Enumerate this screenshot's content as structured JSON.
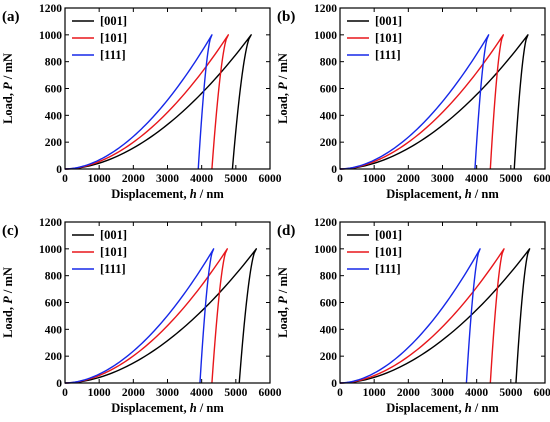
{
  "figure": {
    "panel_labels": [
      "(a)",
      "(b)",
      "(c)",
      "(d)"
    ]
  },
  "chart_data": [
    {
      "type": "line",
      "panel": "(a)",
      "xlabel": "Displacement, h / nm",
      "ylabel": "Load, P / mN",
      "xlim": [
        0,
        6000
      ],
      "ylim": [
        0,
        1200
      ],
      "xticks": [
        0,
        1000,
        2000,
        3000,
        4000,
        5000,
        6000
      ],
      "yticks": [
        0,
        200,
        400,
        600,
        800,
        1000,
        1200
      ],
      "legend_position": "top-left",
      "series": [
        {
          "name": "[001]",
          "color": "#000000",
          "loading": {
            "x_start": 0,
            "x_peak": 5450,
            "y_peak": 1000
          },
          "unloading": {
            "x_peak": 5450,
            "x_end": 4900
          }
        },
        {
          "name": "[101]",
          "color": "#e8161b",
          "loading": {
            "x_start": 0,
            "x_peak": 4780,
            "y_peak": 1000
          },
          "unloading": {
            "x_peak": 4780,
            "x_end": 4300
          }
        },
        {
          "name": "[111]",
          "color": "#1628e8",
          "loading": {
            "x_start": 0,
            "x_peak": 4300,
            "y_peak": 1000
          },
          "unloading": {
            "x_peak": 4300,
            "x_end": 3900
          }
        }
      ]
    },
    {
      "type": "line",
      "panel": "(b)",
      "xlabel": "Displacement, h / nm",
      "ylabel": "Load, P / mN",
      "xlim": [
        0,
        6000
      ],
      "ylim": [
        0,
        1200
      ],
      "xticks": [
        0,
        1000,
        2000,
        3000,
        4000,
        5000,
        6000
      ],
      "yticks": [
        0,
        200,
        400,
        600,
        800,
        1000,
        1200
      ],
      "legend_position": "top-left",
      "series": [
        {
          "name": "[001]",
          "color": "#000000",
          "loading": {
            "x_start": 0,
            "x_peak": 5500,
            "y_peak": 1000
          },
          "unloading": {
            "x_peak": 5500,
            "x_end": 5100
          }
        },
        {
          "name": "[101]",
          "color": "#e8161b",
          "loading": {
            "x_start": 0,
            "x_peak": 4780,
            "y_peak": 1000
          },
          "unloading": {
            "x_peak": 4780,
            "x_end": 4400
          }
        },
        {
          "name": "[111]",
          "color": "#1628e8",
          "loading": {
            "x_start": 0,
            "x_peak": 4350,
            "y_peak": 1000
          },
          "unloading": {
            "x_peak": 4350,
            "x_end": 3950
          }
        }
      ]
    },
    {
      "type": "line",
      "panel": "(c)",
      "xlabel": "Displacement, h / nm",
      "ylabel": "Load, P / mN",
      "xlim": [
        0,
        6000
      ],
      "ylim": [
        0,
        1200
      ],
      "xticks": [
        0,
        1000,
        2000,
        3000,
        4000,
        5000,
        6000
      ],
      "yticks": [
        0,
        200,
        400,
        600,
        800,
        1000,
        1200
      ],
      "legend_position": "top-left",
      "series": [
        {
          "name": "[001]",
          "color": "#000000",
          "loading": {
            "x_start": 0,
            "x_peak": 5600,
            "y_peak": 1000
          },
          "unloading": {
            "x_peak": 5600,
            "x_end": 5100
          }
        },
        {
          "name": "[101]",
          "color": "#e8161b",
          "loading": {
            "x_start": 0,
            "x_peak": 4750,
            "y_peak": 1000
          },
          "unloading": {
            "x_peak": 4750,
            "x_end": 4300
          }
        },
        {
          "name": "[111]",
          "color": "#1628e8",
          "loading": {
            "x_start": 0,
            "x_peak": 4350,
            "y_peak": 1000
          },
          "unloading": {
            "x_peak": 4350,
            "x_end": 3950
          }
        }
      ]
    },
    {
      "type": "line",
      "panel": "(d)",
      "xlabel": "Displacement, h / nm",
      "ylabel": "Load, P / mN",
      "xlim": [
        0,
        6000
      ],
      "ylim": [
        0,
        1200
      ],
      "xticks": [
        0,
        1000,
        2000,
        3000,
        4000,
        5000,
        6000
      ],
      "yticks": [
        0,
        200,
        400,
        600,
        800,
        1000,
        1200
      ],
      "legend_position": "top-left",
      "series": [
        {
          "name": "[001]",
          "color": "#000000",
          "loading": {
            "x_start": 0,
            "x_peak": 5550,
            "y_peak": 1000
          },
          "unloading": {
            "x_peak": 5550,
            "x_end": 5150
          }
        },
        {
          "name": "[101]",
          "color": "#e8161b",
          "loading": {
            "x_start": 0,
            "x_peak": 4800,
            "y_peak": 1000
          },
          "unloading": {
            "x_peak": 4800,
            "x_end": 4400
          }
        },
        {
          "name": "[111]",
          "color": "#1628e8",
          "loading": {
            "x_start": 0,
            "x_peak": 4100,
            "y_peak": 1000
          },
          "unloading": {
            "x_peak": 4100,
            "x_end": 3700
          }
        }
      ]
    }
  ]
}
